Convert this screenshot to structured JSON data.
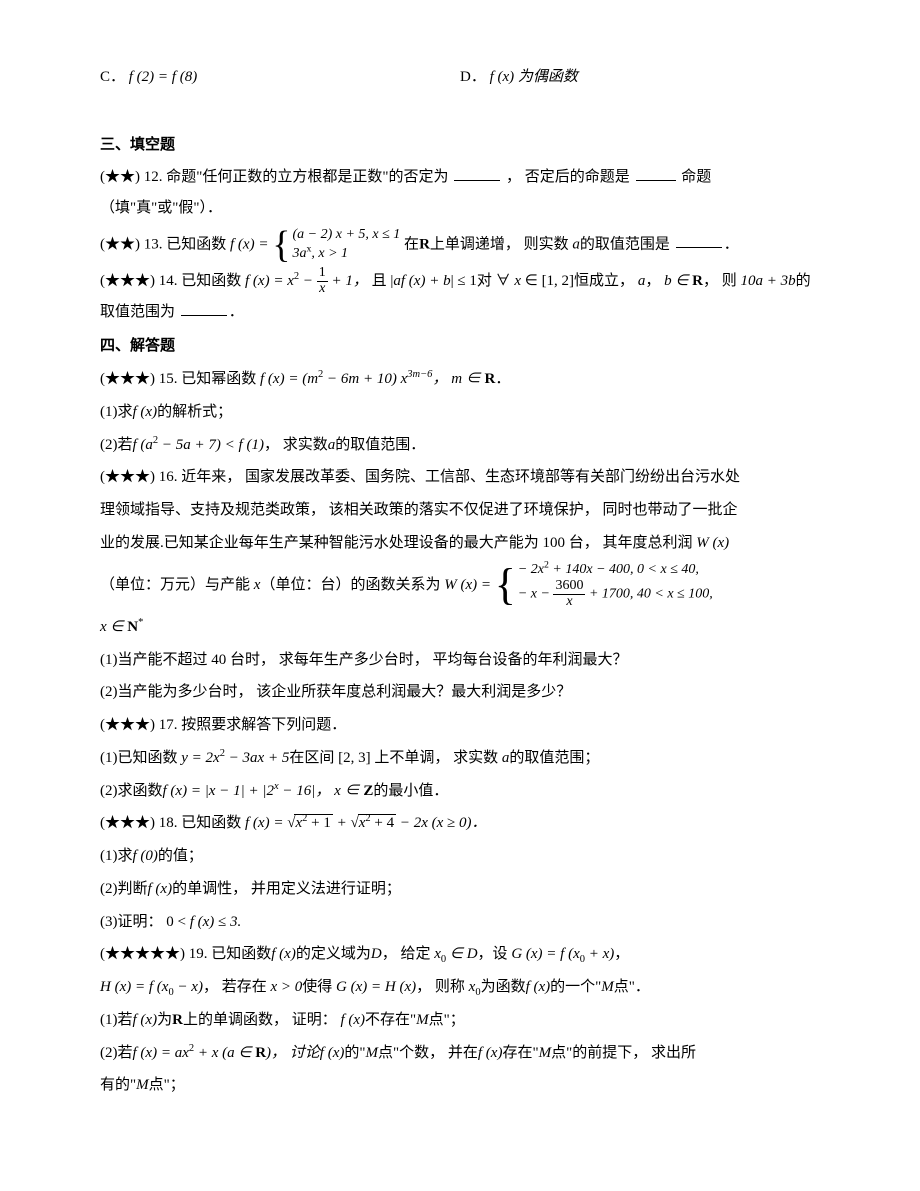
{
  "opts": {
    "c_label": "C．",
    "c_math": "f (2) = f (8)",
    "d_label": "D．",
    "d_math": "f (x) 为偶函数"
  },
  "section3": {
    "title": "三、填空题",
    "q12": {
      "stars": "(★★) ",
      "num": "12. ",
      "t1": "命题\"任何正数的立方根都是正数\"的否定为",
      "t2": "，  否定后的命题是",
      "t3": "命题（填\"真\"或\"假\"）．"
    },
    "q13": {
      "stars": "(★★) ",
      "num": "13. ",
      "t1": "已知函数",
      "fx": "f (x) =",
      "case1": "(a − 2) x + 5, x ≤ 1",
      "case2": "3a",
      "case2_sup": "x",
      "case2_tail": ", x > 1",
      "t2": "在",
      "R": "R",
      "t3": "上单调递增，  则实数 ",
      "a": "a",
      "t4": "的取值范围是",
      "period": "．"
    },
    "q14": {
      "stars": "(★★★) ",
      "num": "14. ",
      "t1": "已知函数",
      "fx": "f (x) = x",
      "sq": "2",
      "minus_frac": " − ",
      "frac_num": "1",
      "frac_den": "x",
      "plus1": " + 1，",
      "t2": "  且 |",
      "af": "af (x) + b",
      "t3": "| ≤ 1对 ∀ ",
      "x": "x",
      "t4": " ∈ [1, 2]恒成立，  ",
      "a": "a",
      "comma": "，",
      "b": "b",
      "inR": " ∈ ",
      "R": "R",
      "t5": "，  则",
      "expr": "10a + 3b",
      "t6": "的取值范围为",
      "period": "．"
    }
  },
  "section4": {
    "title": "四、解答题",
    "q15": {
      "stars": "(★★★) ",
      "num": "15. ",
      "t1": "已知幂函数",
      "fx": "f (x) = (m",
      "sq": "2",
      "m6": " − 6m + 10) x",
      "exp": "3m−6",
      "tail": "，  m ∈",
      "R": "R",
      "period": "．",
      "p1": "(1)求",
      "fx2": "f (x)",
      "p1b": "的解析式；",
      "p2": "(2)若",
      "fa": "f (a",
      "sq2": "2",
      "fa2": " − 5a + 7) < f (1)",
      "p2b": "，  求实数",
      "a": "a",
      "p2c": "的取值范围．"
    },
    "q16": {
      "stars": "(★★★) ",
      "num": "16. ",
      "l1": "近年来，  国家发展改革委、国务院、工信部、生态环境部等有关部门纷纷出台污水处",
      "l2": "理领域指导、支持及规范类政策，  该相关政策的落实不仅促进了环境保护，  同时也带动了一批企",
      "l3a": "业的发展.已知某企业每年生产某种智能污水处理设备的最大产能为 100 台，  其年度总利润 ",
      "Wx": "W (x)",
      "l4a": "（单位：万元）与产能 ",
      "x": "x",
      "l4b": "（单位：台）的函数关系为 ",
      "Wx2": "W (x) = ",
      "case1": "− 2x",
      "c1sq": "2",
      "c1b": " + 140x − 400, 0 < x ≤ 40,",
      "case2a": "− x − ",
      "frac_num": "3600",
      "frac_den": "x",
      "case2b": " + 1700, 40 < x ≤ 100,",
      "xin": "x ∈ ",
      "Nstar": "N",
      "star": "*",
      "p1": "(1)当产能不超过 40 台时，  求每年生产多少台时，  平均每台设备的年利润最大？",
      "p2": "(2)当产能为多少台时，  该企业所获年度总利润最大？最大利润是多少？"
    },
    "q17": {
      "stars": "(★★★) ",
      "num": "17. ",
      "t1": "按照要求解答下列问题．",
      "p1a": "(1)已知函数 ",
      "y": "y = 2x",
      "sq": "2",
      "p1b": " − 3ax + 5",
      "p1c": "在区间 [2, 3] 上不单调，  求实数 ",
      "a": "a",
      "p1d": "的取值范围；",
      "p2a": "(2)求函数",
      "fx": "f (x) = |x − 1| + |2",
      "sup": "x",
      "p2b": " − 16|，  ",
      "xin": "x ∈ ",
      "Z": "Z",
      "p2c": "的最小值．"
    },
    "q18": {
      "stars": "(★★★) ",
      "num": "18. ",
      "t1": "已知函数",
      "fx": "f (x) = ",
      "rad1": "x",
      "r1sq": "2",
      "r1p": " + 1",
      "plus": " + ",
      "rad2": "x",
      "r2sq": "2",
      "r2p": " + 4",
      "tail": " − 2x (x ≥ 0)．",
      "p1a": "(1)求",
      "f0": "f (0)",
      "p1b": "的值；",
      "p2a": "(2)判断",
      "fx2": "f (x)",
      "p2b": "的单调性，  并用定义法进行证明；",
      "p3": "(3)证明：  0 < ",
      "fx3": "f (x)",
      "p3b": " ≤ 3."
    },
    "q19": {
      "stars": "(★★★★★) ",
      "num": "19. ",
      "t1": "已知函数",
      "fx": "f (x)",
      "t2": "的定义域为",
      "D": "D",
      "t3": "，  给定 ",
      "x0": "x",
      "sub0": "0",
      "inD": " ∈ D",
      "t4": "，设 ",
      "Gx": "G (x) = f (x",
      "sub0b": "0",
      "Gx2": " + x)",
      "comma": "，",
      "Hx": "H (x) = f (x",
      "sub0c": "0",
      "Hx2": " − x)",
      "t5": "，  若存在 ",
      "xgt0": "x > 0",
      "t6": "使得 ",
      "GH": "G (x) = H (x)",
      "t7": "，  则称 ",
      "x0b": "x",
      "sub0d": "0",
      "t8": "为函数",
      "fx2": "f (x)",
      "t9": "的一个\"",
      "M": "M",
      "t10": "点\"．",
      "p1a": "(1)若",
      "fx3": "f (x)",
      "p1b": "为",
      "R": "R",
      "p1c": "上的单调函数，  证明：  ",
      "fx4": "f (x)",
      "p1d": "不存在\"",
      "M2": "M",
      "p1e": "点\"；",
      "p2a": "(2)若",
      "fx5": "f (x) = ax",
      "sq": "2",
      "p2b": " + x (a ∈ ",
      "R2": "R",
      "p2c": ")，  讨论",
      "fx6": "f (x)",
      "p2d": "的\"",
      "M3": "M",
      "p2e": "点\"个数，  并在",
      "fx7": "f (x)",
      "p2f": "存在\"",
      "M4": "M",
      "p2g": "点\"的前提下，  求出所",
      "p2h": "有的\"",
      "M5": "M",
      "p2i": "点\"；"
    }
  }
}
